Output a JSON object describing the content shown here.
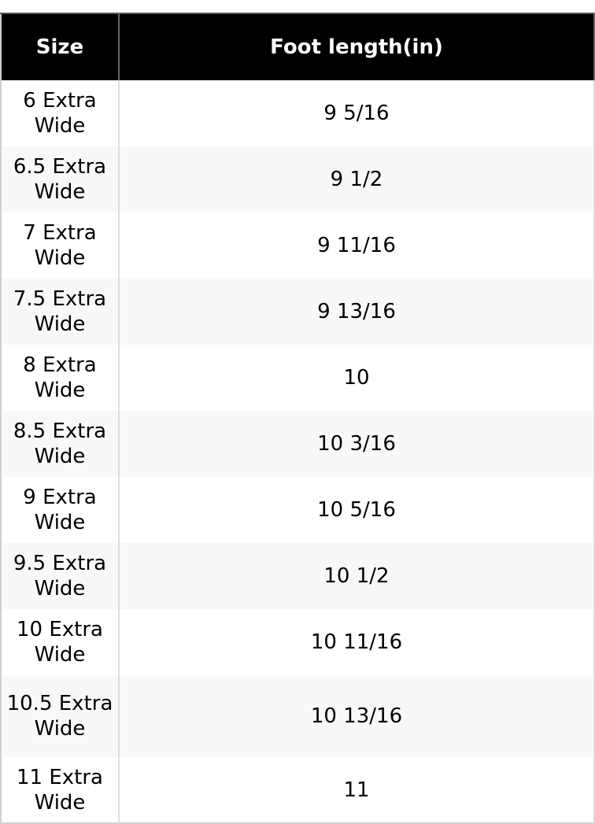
{
  "table": {
    "headers": [
      "Size",
      "Foot length(in)"
    ],
    "rows": [
      [
        "6 Extra Wide",
        "9 5/16"
      ],
      [
        "6.5 Extra Wide",
        "9 1/2"
      ],
      [
        "7 Extra Wide",
        "9 11/16"
      ],
      [
        "7.5 Extra Wide",
        "9 13/16"
      ],
      [
        "8 Extra Wide",
        "10"
      ],
      [
        "8.5 Extra Wide",
        "10 3/16"
      ],
      [
        "9 Extra Wide",
        "10 5/16"
      ],
      [
        "9.5 Extra Wide",
        "10 1/2"
      ],
      [
        "10 Extra Wide",
        "10 11/16"
      ],
      [
        "10.5 Extra Wide",
        "10 13/16"
      ],
      [
        "11 Extra Wide",
        "11"
      ]
    ]
  }
}
